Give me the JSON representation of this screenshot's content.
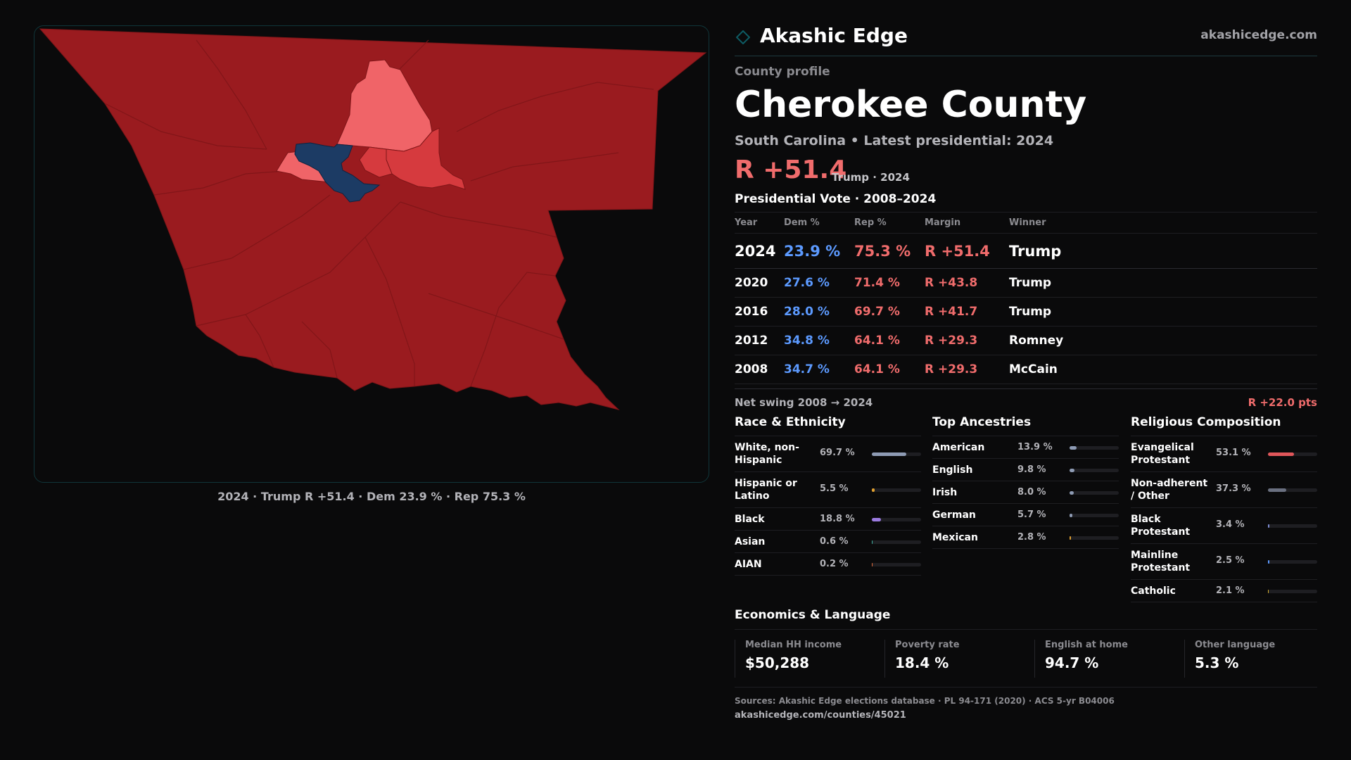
{
  "map": {
    "caption": "2024 · Trump R +51.4 · Dem 23.9 % · Rep 75.3 %",
    "colors": {
      "strong_rep": "#9a1b1f",
      "lean_rep": "#d63a3e",
      "light_rep": "#f06468",
      "dem": "#1c3b64",
      "border": "#7f1518"
    }
  },
  "brand": {
    "name": "Akashic Edge",
    "url": "akashicedge.com",
    "logo_icon": "diamond-outline-icon",
    "accent": "#0e4b52"
  },
  "profile": {
    "eyebrow": "County profile",
    "title": "Cherokee County",
    "subtitle": "South Carolina • Latest presidential: 2024",
    "headline_margin": "R +51.4",
    "headline_sub": "Trump · 2024"
  },
  "votes": {
    "title": "Presidential Vote · 2008–2024",
    "headers": [
      "Year",
      "Dem %",
      "Rep %",
      "Margin",
      "Winner"
    ],
    "rows": [
      {
        "year": "2024",
        "dem": "23.9 %",
        "rep": "75.3 %",
        "margin": "R +51.4",
        "winner": "Trump"
      },
      {
        "year": "2020",
        "dem": "27.6 %",
        "rep": "71.4 %",
        "margin": "R +43.8",
        "winner": "Trump"
      },
      {
        "year": "2016",
        "dem": "28.0 %",
        "rep": "69.7 %",
        "margin": "R +41.7",
        "winner": "Trump"
      },
      {
        "year": "2012",
        "dem": "34.8 %",
        "rep": "64.1 %",
        "margin": "R +29.3",
        "winner": "Romney"
      },
      {
        "year": "2008",
        "dem": "34.7 %",
        "rep": "64.1 %",
        "margin": "R +29.3",
        "winner": "McCain"
      }
    ],
    "colors": {
      "dem": "#5c9aff",
      "rep": "#f06c6c"
    }
  },
  "swing": {
    "label": "Net swing 2008 → 2024",
    "value": "R +22.0 pts"
  },
  "race": {
    "title": "Race & Ethnicity",
    "rows": [
      {
        "label": "White, non-Hispanic",
        "pct": "69.7 %",
        "value": 69.7,
        "color": "#8e9bb4"
      },
      {
        "label": "Hispanic or Latino",
        "pct": "5.5 %",
        "value": 5.5,
        "color": "#e0a030"
      },
      {
        "label": "Black",
        "pct": "18.8 %",
        "value": 18.8,
        "color": "#9b7be0"
      },
      {
        "label": "Asian",
        "pct": "0.6 %",
        "value": 0.6,
        "color": "#3fb0a0"
      },
      {
        "label": "AIAN",
        "pct": "0.2 %",
        "value": 0.2,
        "color": "#e06a3a"
      }
    ]
  },
  "ancestry": {
    "title": "Top Ancestries",
    "rows": [
      {
        "label": "American",
        "pct": "13.9 %",
        "value": 13.9,
        "color": "#8e9bb4"
      },
      {
        "label": "English",
        "pct": "9.8 %",
        "value": 9.8,
        "color": "#8e9bb4"
      },
      {
        "label": "Irish",
        "pct": "8.0 %",
        "value": 8.0,
        "color": "#8e9bb4"
      },
      {
        "label": "German",
        "pct": "5.7 %",
        "value": 5.7,
        "color": "#8e9bb4"
      },
      {
        "label": "Mexican",
        "pct": "2.8 %",
        "value": 2.8,
        "color": "#e0a030"
      }
    ]
  },
  "religion": {
    "title": "Religious Composition",
    "rows": [
      {
        "label": "Evangelical Protestant",
        "pct": "53.1 %",
        "value": 53.1,
        "color": "#e0565a"
      },
      {
        "label": "Non-adherent / Other",
        "pct": "37.3 %",
        "value": 37.3,
        "color": "#6a7080"
      },
      {
        "label": "Black Protestant",
        "pct": "3.4 %",
        "value": 3.4,
        "color": "#7f8ed6"
      },
      {
        "label": "Mainline Protestant",
        "pct": "2.5 %",
        "value": 2.5,
        "color": "#5c9aff"
      },
      {
        "label": "Catholic",
        "pct": "2.1 %",
        "value": 2.1,
        "color": "#d6b030"
      }
    ]
  },
  "economics": {
    "title": "Economics & Language",
    "cells": [
      {
        "label": "Median HH income",
        "value": "$50,288"
      },
      {
        "label": "Poverty rate",
        "value": "18.4 %"
      },
      {
        "label": "English at home",
        "value": "94.7 %"
      },
      {
        "label": "Other language",
        "value": "5.3 %"
      }
    ]
  },
  "footer": {
    "sources": "Sources: Akashic Edge elections database · PL 94-171 (2020) · ACS 5-yr B04006",
    "url": "akashicedge.com/counties/45021"
  }
}
